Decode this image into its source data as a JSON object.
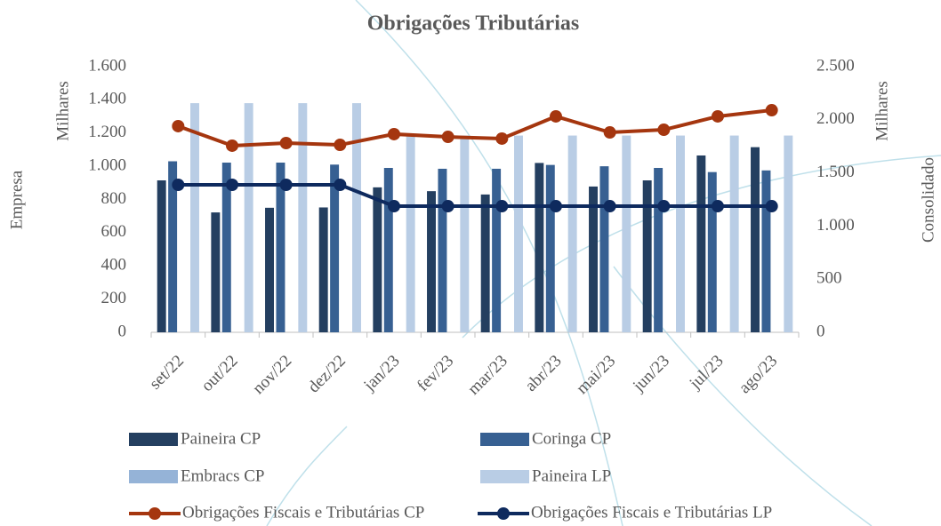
{
  "chart_data": {
    "type": "bar",
    "title": "Obrigações Tributárias",
    "y_label": "Empresa",
    "y_unit": "Milhares",
    "y2_label": "Consolidado",
    "y2_unit": "Milhares",
    "categories": [
      "set/22",
      "out/22",
      "nov/22",
      "dez/22",
      "jan/23",
      "fev/23",
      "mar/23",
      "abr/23",
      "mai/23",
      "jun/23",
      "jul/23",
      "ago/23"
    ],
    "series": [
      {
        "name": "Paineira CP",
        "type": "bar",
        "color": "#243f60",
        "values": [
          915,
          722,
          750,
          752,
          873,
          850,
          830,
          1020,
          878,
          915,
          1065,
          1115
        ]
      },
      {
        "name": "Coringa CP",
        "type": "bar",
        "color": "#376092",
        "values": [
          1030,
          1022,
          1022,
          1010,
          990,
          985,
          985,
          1008,
          1000,
          990,
          965,
          975
        ]
      },
      {
        "name": "Embracs CP",
        "type": "bar",
        "color": "#95b3d7",
        "values": [
          0,
          0,
          0,
          0,
          0,
          0,
          0,
          0,
          0,
          0,
          0,
          0
        ]
      },
      {
        "name": "Paineira LP",
        "type": "bar",
        "color": "#b9cde5",
        "values": [
          1380,
          1380,
          1380,
          1380,
          1185,
          1185,
          1185,
          1185,
          1185,
          1185,
          1185,
          1185
        ]
      },
      {
        "name": "Obrigações Fiscais e Tributárias CP",
        "type": "line",
        "axis": "y2",
        "color": "#a5360f",
        "values": [
          1940,
          1756,
          1781,
          1764,
          1865,
          1839,
          1823,
          2032,
          1881,
          1906,
          2032,
          2090
        ]
      },
      {
        "name": "Obrigações Fiscais e Tributárias LP",
        "type": "line",
        "axis": "y2",
        "color": "#0e2a5e",
        "values": [
          1388,
          1388,
          1388,
          1388,
          1187,
          1187,
          1187,
          1187,
          1187,
          1187,
          1187,
          1187
        ]
      }
    ],
    "ylim": [
      0,
      1600
    ],
    "yticks": [
      0,
      200,
      400,
      600,
      800,
      {
        "value": 1000,
        "label": "1.000"
      },
      {
        "value": 1200,
        "label": "1.200"
      },
      {
        "value": 1400,
        "label": "1.400"
      },
      {
        "value": 1600,
        "label": "1.600"
      }
    ],
    "y2lim": [
      0,
      2500
    ],
    "y2ticks": [
      0,
      500,
      {
        "value": 1000,
        "label": "1.000"
      },
      {
        "value": 1500,
        "label": "1.500"
      },
      {
        "value": 2000,
        "label": "2.000"
      },
      {
        "value": 2500,
        "label": "2.500"
      }
    ],
    "grid": false,
    "legend": "bottom"
  }
}
